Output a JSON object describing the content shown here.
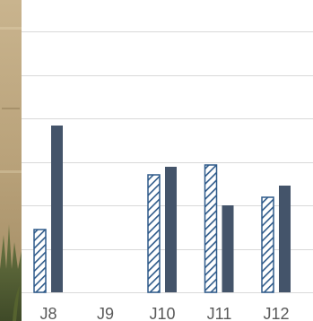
{
  "chart_data": {
    "type": "bar",
    "categories": [
      "J8",
      "J9",
      "J10",
      "J11",
      "J12"
    ],
    "series": [
      {
        "values": [
          70,
          0,
          131,
          142,
          106
        ],
        "pattern": "diagonal-hatch"
      },
      {
        "values": [
          186,
          0,
          140,
          97,
          119
        ]
      }
    ],
    "ylim": [
      0,
      320
    ],
    "grid": true,
    "legend": "none",
    "colors": {
      "hatch_stroke": "#2e5a8a",
      "hatch_fill": "#ffffff",
      "solid": "#44546a",
      "gridline": "#d9d9d9",
      "tick_text": "#595959"
    }
  }
}
